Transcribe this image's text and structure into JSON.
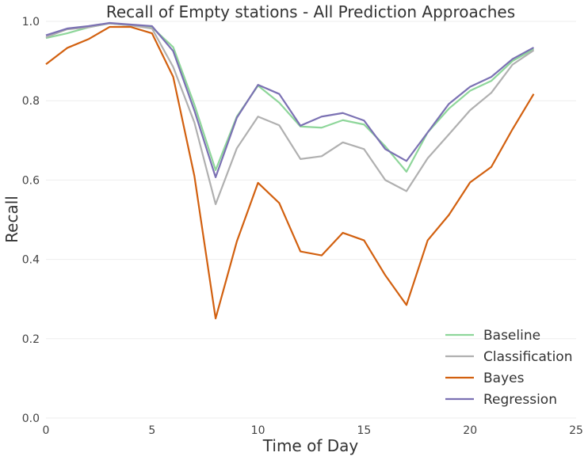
{
  "chart_data": {
    "type": "line",
    "title": "Recall of Empty stations - All Prediction Approaches",
    "xlabel": "Time of Day",
    "ylabel": "Recall",
    "xlim": [
      0,
      25
    ],
    "ylim": [
      0,
      1.0
    ],
    "xticks": [
      0,
      5,
      10,
      15,
      20,
      25
    ],
    "yticks": [
      0.0,
      0.2,
      0.4,
      0.6,
      0.8,
      1.0
    ],
    "grid": "horizontal",
    "legend_position": "bottom-right",
    "x": [
      0,
      1,
      2,
      3,
      4,
      5,
      6,
      7,
      8,
      9,
      10,
      11,
      12,
      13,
      14,
      15,
      16,
      17,
      18,
      19,
      20,
      21,
      22,
      23
    ],
    "series": [
      {
        "name": "Baseline",
        "color": "#8ed69a",
        "values": [
          0.958,
          0.97,
          0.985,
          0.995,
          0.99,
          0.985,
          0.935,
          0.79,
          0.625,
          0.76,
          0.838,
          0.795,
          0.735,
          0.732,
          0.751,
          0.74,
          0.685,
          0.621,
          0.72,
          0.78,
          0.825,
          0.85,
          0.9,
          0.93
        ]
      },
      {
        "name": "Classification",
        "color": "#b0b0b0",
        "values": [
          0.96,
          0.98,
          0.985,
          0.995,
          0.99,
          0.982,
          0.885,
          0.745,
          0.539,
          0.68,
          0.76,
          0.738,
          0.653,
          0.66,
          0.695,
          0.678,
          0.6,
          0.572,
          0.655,
          0.715,
          0.776,
          0.82,
          0.891,
          0.927
        ]
      },
      {
        "name": "Bayes",
        "color": "#d2600f",
        "values": [
          0.892,
          0.933,
          0.955,
          0.986,
          0.986,
          0.97,
          0.86,
          0.61,
          0.251,
          0.445,
          0.593,
          0.542,
          0.42,
          0.41,
          0.467,
          0.448,
          0.36,
          0.285,
          0.448,
          0.512,
          0.594,
          0.633,
          0.728,
          0.817
        ]
      },
      {
        "name": "Regression",
        "color": "#7b71b3",
        "values": [
          0.965,
          0.982,
          0.988,
          0.996,
          0.992,
          0.988,
          0.925,
          0.775,
          0.607,
          0.757,
          0.84,
          0.817,
          0.737,
          0.76,
          0.769,
          0.75,
          0.678,
          0.648,
          0.72,
          0.792,
          0.835,
          0.86,
          0.905,
          0.934
        ]
      }
    ]
  }
}
